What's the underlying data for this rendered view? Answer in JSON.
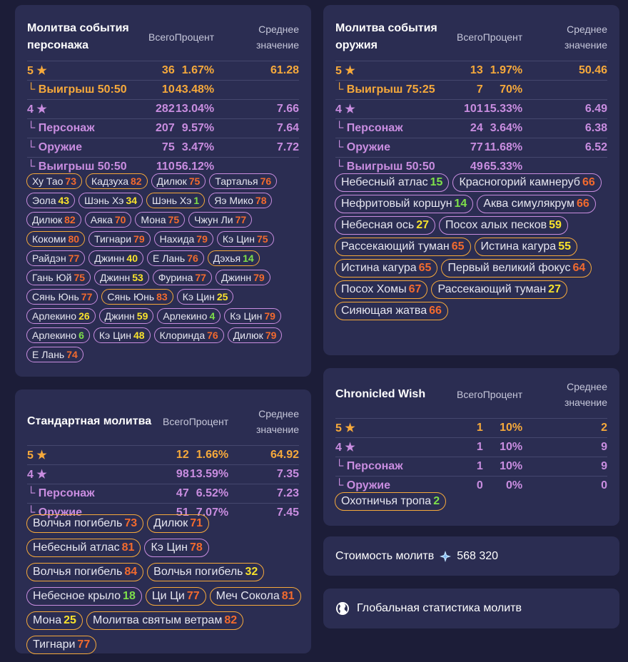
{
  "headers": {
    "total": "Всего",
    "percent": "Процент",
    "avg": "Среднее значение"
  },
  "character_event": {
    "title": "Молитва события персонажа",
    "rows": [
      {
        "label": "5 ★",
        "total": "36",
        "percent": "1.67%",
        "avg": "61.28"
      },
      {
        "label": "└ Выигрыш 50:50",
        "total": "10",
        "percent": "43.48%",
        "avg": ""
      },
      {
        "label": "4 ★",
        "total": "282",
        "percent": "13.04%",
        "avg": "7.66"
      },
      {
        "label": "└ Персонаж",
        "total": "207",
        "percent": "9.57%",
        "avg": "7.64"
      },
      {
        "label": "└ Оружие",
        "total": "75",
        "percent": "3.47%",
        "avg": "7.72"
      },
      {
        "label": "└ Выигрыш 50:50",
        "total": "110",
        "percent": "56.12%",
        "avg": ""
      }
    ],
    "chips": [
      {
        "name": "Ху Тао",
        "count": "73"
      },
      {
        "name": "Кадзуха",
        "count": "82"
      },
      {
        "name": "Дилюк",
        "count": "75"
      },
      {
        "name": "Тарталья",
        "count": "76"
      },
      {
        "name": "Эола",
        "count": "43"
      },
      {
        "name": "Шэнь Хэ",
        "count": "34"
      },
      {
        "name": "Шэнь Хэ",
        "count": "1"
      },
      {
        "name": "Яэ Мико",
        "count": "78"
      },
      {
        "name": "Дилюк",
        "count": "82"
      },
      {
        "name": "Аяка",
        "count": "70"
      },
      {
        "name": "Мона",
        "count": "75"
      },
      {
        "name": "Чжун Ли",
        "count": "77"
      },
      {
        "name": "Кокоми",
        "count": "80"
      },
      {
        "name": "Тигнари",
        "count": "79"
      },
      {
        "name": "Нахида",
        "count": "79"
      },
      {
        "name": "Кэ Цин",
        "count": "75"
      },
      {
        "name": "Райдэн",
        "count": "77"
      },
      {
        "name": "Джинн",
        "count": "40"
      },
      {
        "name": "Е Лань",
        "count": "76"
      },
      {
        "name": "Дэхья",
        "count": "14"
      },
      {
        "name": "Гань Юй",
        "count": "75"
      },
      {
        "name": "Джинн",
        "count": "53"
      },
      {
        "name": "Фурина",
        "count": "77"
      },
      {
        "name": "Джинн",
        "count": "79"
      },
      {
        "name": "Сянь Юнь",
        "count": "77"
      },
      {
        "name": "Сянь Юнь",
        "count": "83"
      },
      {
        "name": "Кэ Цин",
        "count": "25"
      },
      {
        "name": "Арлекино",
        "count": "26"
      },
      {
        "name": "Джинн",
        "count": "59"
      },
      {
        "name": "Арлекино",
        "count": "4"
      },
      {
        "name": "Кэ Цин",
        "count": "79"
      },
      {
        "name": "Арлекино",
        "count": "6"
      },
      {
        "name": "Кэ Цин",
        "count": "48"
      },
      {
        "name": "Клоринда",
        "count": "76"
      },
      {
        "name": "Дилюк",
        "count": "79"
      },
      {
        "name": "Е Лань",
        "count": "74"
      }
    ]
  },
  "weapon_event": {
    "title": "Молитва события оружия",
    "rows": [
      {
        "label": "5 ★",
        "total": "13",
        "percent": "1.97%",
        "avg": "50.46"
      },
      {
        "label": "└ Выигрыш 75:25",
        "total": "7",
        "percent": "70%",
        "avg": ""
      },
      {
        "label": "4 ★",
        "total": "101",
        "percent": "15.33%",
        "avg": "6.49"
      },
      {
        "label": "└ Персонаж",
        "total": "24",
        "percent": "3.64%",
        "avg": "6.38"
      },
      {
        "label": "└ Оружие",
        "total": "77",
        "percent": "11.68%",
        "avg": "6.52"
      },
      {
        "label": "└ Выигрыш 50:50",
        "total": "49",
        "percent": "65.33%",
        "avg": ""
      }
    ],
    "chips": [
      {
        "name": "Небесный атлас",
        "count": "15"
      },
      {
        "name": "Красногорий камнеруб",
        "count": "66"
      },
      {
        "name": "Нефритовый коршун",
        "count": "14"
      },
      {
        "name": "Аква симулякрум",
        "count": "66"
      },
      {
        "name": "Небесная ось",
        "count": "27"
      },
      {
        "name": "Посох алых песков",
        "count": "59"
      },
      {
        "name": "Рассекающий туман",
        "count": "65"
      },
      {
        "name": "Истина кагура",
        "count": "55"
      },
      {
        "name": "Истина кагура",
        "count": "65"
      },
      {
        "name": "Первый великий фокус",
        "count": "64"
      },
      {
        "name": "Посох Хомы",
        "count": "67"
      },
      {
        "name": "Рассекающий туман",
        "count": "27"
      },
      {
        "name": "Сияющая жатва",
        "count": "66"
      }
    ]
  },
  "standard": {
    "title": "Стандартная молитва",
    "rows": [
      {
        "label": "5 ★",
        "total": "12",
        "percent": "1.66%",
        "avg": "64.92"
      },
      {
        "label": "4 ★",
        "total": "98",
        "percent": "13.59%",
        "avg": "7.35"
      },
      {
        "label": "└ Персонаж",
        "total": "47",
        "percent": "6.52%",
        "avg": "7.23"
      },
      {
        "label": "└ Оружие",
        "total": "51",
        "percent": "7.07%",
        "avg": "7.45"
      }
    ],
    "chips": [
      {
        "name": "Волчья погибель",
        "count": "73"
      },
      {
        "name": "Дилюк",
        "count": "71"
      },
      {
        "name": "Небесный атлас",
        "count": "81"
      },
      {
        "name": "Кэ Цин",
        "count": "78"
      },
      {
        "name": "Волчья погибель",
        "count": "84"
      },
      {
        "name": "Волчья погибель",
        "count": "32"
      },
      {
        "name": "Небесное крыло",
        "count": "18"
      },
      {
        "name": "Ци Ци",
        "count": "77"
      },
      {
        "name": "Меч Сокола",
        "count": "81"
      },
      {
        "name": "Мона",
        "count": "25"
      },
      {
        "name": "Молитва святым ветрам",
        "count": "82"
      },
      {
        "name": "Тигнари",
        "count": "77"
      }
    ]
  },
  "chronicled": {
    "title": "Chronicled Wish",
    "rows": [
      {
        "label": "5 ★",
        "total": "1",
        "percent": "10%",
        "avg": "2"
      },
      {
        "label": "4 ★",
        "total": "1",
        "percent": "10%",
        "avg": "9"
      },
      {
        "label": "└ Персонаж",
        "total": "1",
        "percent": "10%",
        "avg": "9"
      },
      {
        "label": "└ Оружие",
        "total": "0",
        "percent": "0%",
        "avg": "0"
      }
    ],
    "chips": [
      {
        "name": "Охотничья тропа",
        "count": "2"
      }
    ]
  },
  "cost": {
    "label": "Стоимость молитв",
    "icon": "primogem-icon",
    "value": "568 320"
  },
  "global": {
    "icon": "globe-icon",
    "label": "Глобальная статистика молитв"
  }
}
